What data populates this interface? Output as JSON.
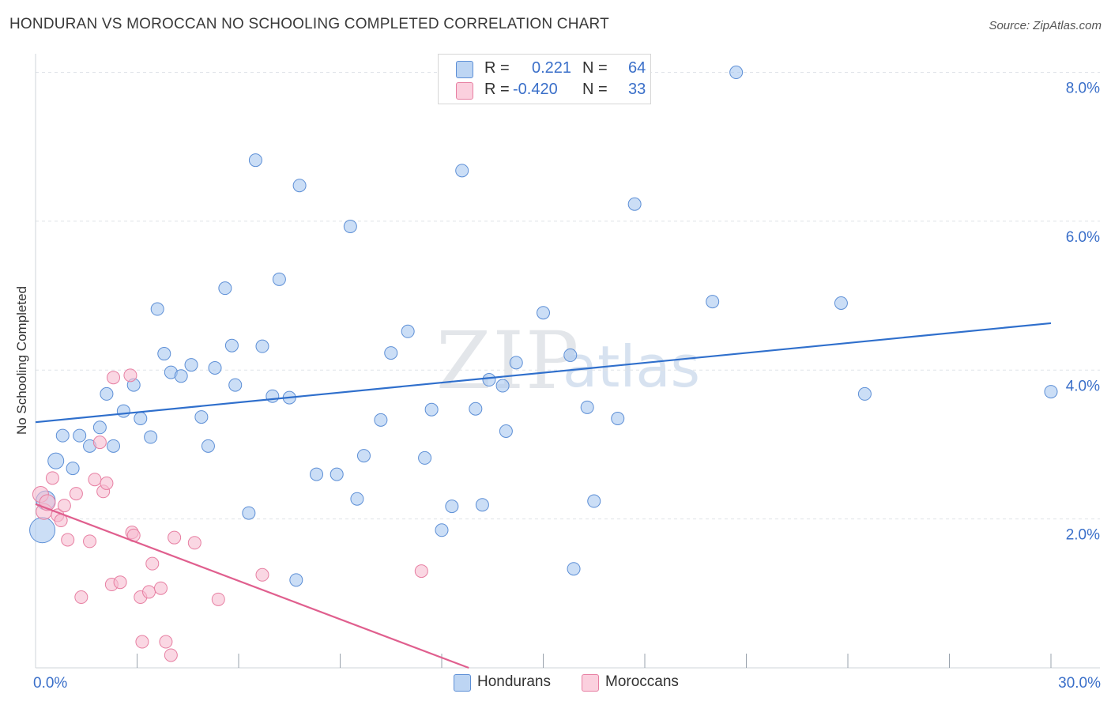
{
  "title": "HONDURAN VS MOROCCAN NO SCHOOLING COMPLETED CORRELATION CHART",
  "source": "Source: ZipAtlas.com",
  "watermark": {
    "zip": "ZIP",
    "atlas": "atlas"
  },
  "legend": {
    "rows": [
      {
        "r_label": "R =",
        "r_value": "0.221",
        "n_label": "N =",
        "n_value": "64",
        "color": "#a9c8f0"
      },
      {
        "r_label": "R =",
        "r_value": "-0.420",
        "n_label": "N =",
        "n_value": "33",
        "color": "#f7bdd0"
      }
    ]
  },
  "bottom_legend": [
    {
      "label": "Hondurans",
      "color": "#a9c8f0"
    },
    {
      "label": "Moroccans",
      "color": "#f7bdd0"
    }
  ],
  "colors": {
    "blue_fill": "#a9c8f0",
    "blue_stroke": "#5d8fd6",
    "blue_line": "#2f6fcc",
    "pink_fill": "#f7bdd0",
    "pink_stroke": "#e77fa2",
    "pink_line": "#e05f8e",
    "grid": "#dfe3e8",
    "tick_text": "#3a6fc9"
  },
  "chart_data": {
    "type": "scatter",
    "title": "HONDURAN VS MOROCCAN NO SCHOOLING COMPLETED CORRELATION CHART",
    "xlabel": "",
    "ylabel": "No Schooling Completed",
    "xlim": [
      0,
      30
    ],
    "ylim": [
      0,
      8.25
    ],
    "x_tick_labels": [
      {
        "value": 0,
        "label": "0.0%"
      },
      {
        "value": 30,
        "label": "30.0%"
      }
    ],
    "y_tick_labels": [
      {
        "value": 2,
        "label": "2.0%"
      },
      {
        "value": 4,
        "label": "4.0%"
      },
      {
        "value": 6,
        "label": "6.0%"
      },
      {
        "value": 8,
        "label": "8.0%"
      }
    ],
    "x_minor_ticks": [
      3,
      6,
      9,
      12,
      15,
      18,
      21,
      24,
      27,
      30
    ],
    "series": [
      {
        "name": "Hondurans",
        "points": [
          [
            0.2,
            1.85
          ],
          [
            0.3,
            2.25
          ],
          [
            0.6,
            2.78
          ],
          [
            0.8,
            3.12
          ],
          [
            1.1,
            2.68
          ],
          [
            1.3,
            3.12
          ],
          [
            1.6,
            2.98
          ],
          [
            1.9,
            3.23
          ],
          [
            2.1,
            3.68
          ],
          [
            2.3,
            2.98
          ],
          [
            2.6,
            3.45
          ],
          [
            2.9,
            3.8
          ],
          [
            3.1,
            3.35
          ],
          [
            3.4,
            3.1
          ],
          [
            3.6,
            4.82
          ],
          [
            3.8,
            4.22
          ],
          [
            4.0,
            3.97
          ],
          [
            4.3,
            3.92
          ],
          [
            4.6,
            4.07
          ],
          [
            4.9,
            3.37
          ],
          [
            5.1,
            2.98
          ],
          [
            5.3,
            4.03
          ],
          [
            5.6,
            5.1
          ],
          [
            5.8,
            4.33
          ],
          [
            5.9,
            3.8
          ],
          [
            6.3,
            2.08
          ],
          [
            6.5,
            6.82
          ],
          [
            6.7,
            4.32
          ],
          [
            7.0,
            3.65
          ],
          [
            7.2,
            5.22
          ],
          [
            7.5,
            3.63
          ],
          [
            7.7,
            1.18
          ],
          [
            7.8,
            6.48
          ],
          [
            8.3,
            2.6
          ],
          [
            8.9,
            2.6
          ],
          [
            9.3,
            5.93
          ],
          [
            9.5,
            2.27
          ],
          [
            9.7,
            2.85
          ],
          [
            10.2,
            3.33
          ],
          [
            10.5,
            4.23
          ],
          [
            11.0,
            4.52
          ],
          [
            11.5,
            2.82
          ],
          [
            11.7,
            3.47
          ],
          [
            12.0,
            1.85
          ],
          [
            12.3,
            2.17
          ],
          [
            12.6,
            6.68
          ],
          [
            13.0,
            3.48
          ],
          [
            13.2,
            2.19
          ],
          [
            13.4,
            3.87
          ],
          [
            13.8,
            3.79
          ],
          [
            13.9,
            3.18
          ],
          [
            14.2,
            4.1
          ],
          [
            15.0,
            4.77
          ],
          [
            15.8,
            4.2
          ],
          [
            15.9,
            1.33
          ],
          [
            16.3,
            3.5
          ],
          [
            16.5,
            2.24
          ],
          [
            17.2,
            3.35
          ],
          [
            17.7,
            6.23
          ],
          [
            20.0,
            4.92
          ],
          [
            20.7,
            8.0
          ],
          [
            23.8,
            4.9
          ],
          [
            24.5,
            3.68
          ],
          [
            30.0,
            3.71
          ]
        ]
      },
      {
        "name": "Moroccans",
        "points": [
          [
            0.15,
            2.33
          ],
          [
            0.25,
            2.1
          ],
          [
            0.35,
            2.22
          ],
          [
            0.5,
            2.55
          ],
          [
            0.65,
            2.05
          ],
          [
            0.75,
            1.98
          ],
          [
            0.85,
            2.18
          ],
          [
            0.95,
            1.72
          ],
          [
            1.2,
            2.34
          ],
          [
            1.35,
            0.95
          ],
          [
            1.6,
            1.7
          ],
          [
            1.75,
            2.53
          ],
          [
            1.9,
            3.03
          ],
          [
            2.0,
            2.37
          ],
          [
            2.1,
            2.48
          ],
          [
            2.25,
            1.12
          ],
          [
            2.3,
            3.9
          ],
          [
            2.5,
            1.15
          ],
          [
            2.8,
            3.93
          ],
          [
            2.85,
            1.82
          ],
          [
            2.9,
            1.78
          ],
          [
            3.1,
            0.95
          ],
          [
            3.15,
            0.35
          ],
          [
            3.35,
            1.02
          ],
          [
            3.45,
            1.4
          ],
          [
            3.7,
            1.07
          ],
          [
            3.85,
            0.35
          ],
          [
            4.0,
            0.17
          ],
          [
            4.1,
            1.75
          ],
          [
            4.7,
            1.68
          ],
          [
            5.4,
            0.92
          ],
          [
            6.7,
            1.25
          ],
          [
            11.4,
            1.3
          ]
        ]
      }
    ],
    "trend_lines": [
      {
        "name": "Hondurans",
        "x": [
          0,
          30
        ],
        "y": [
          3.3,
          4.63
        ]
      },
      {
        "name": "Moroccans",
        "x": [
          0,
          12.8
        ],
        "y": [
          2.2,
          0.0
        ]
      }
    ],
    "legend_position": "top-center",
    "grid": true
  }
}
